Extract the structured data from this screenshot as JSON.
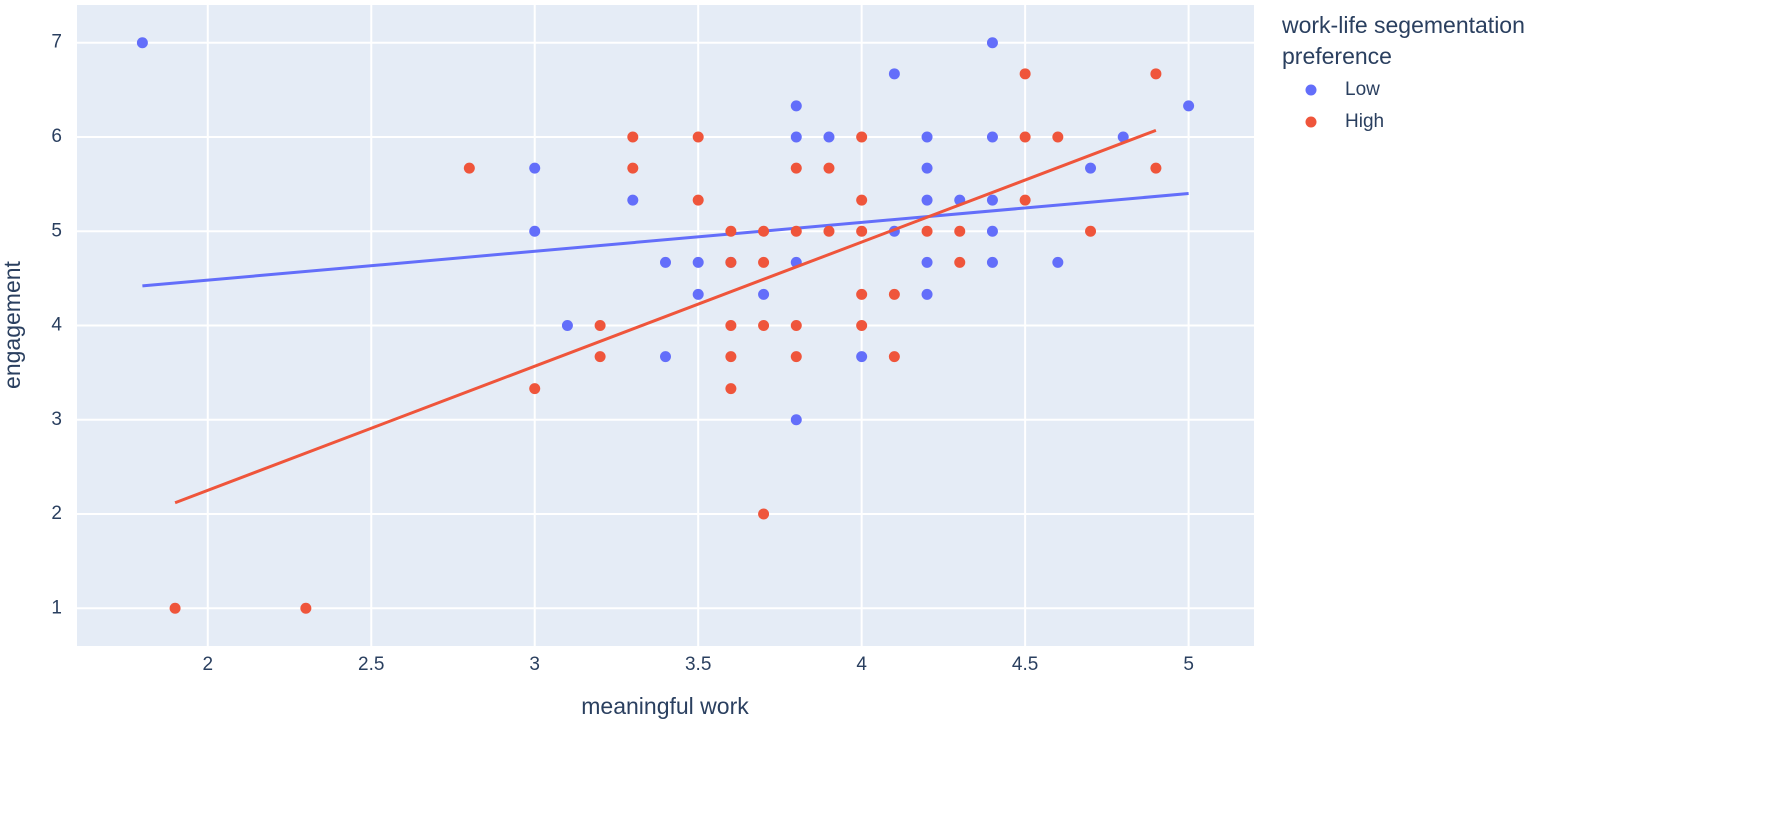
{
  "chart_data": {
    "type": "scatter",
    "xlabel": "meaningful work",
    "ylabel": "engagement",
    "legend_title": "work-life segementation preference",
    "xlim": [
      1.6,
      5.2
    ],
    "ylim": [
      0.6,
      7.4
    ],
    "xticks": [
      2,
      2.5,
      3,
      3.5,
      4,
      4.5,
      5
    ],
    "yticks": [
      1,
      2,
      3,
      4,
      5,
      6,
      7
    ],
    "grid": true,
    "legend": "right",
    "series": [
      {
        "name": "Low",
        "color": "#636efa",
        "x": [
          1.8,
          3.0,
          3.0,
          3.1,
          3.3,
          3.4,
          3.4,
          3.5,
          3.5,
          3.6,
          3.7,
          3.8,
          3.8,
          3.8,
          3.8,
          3.9,
          4.0,
          4.1,
          4.1,
          4.2,
          4.2,
          4.2,
          4.2,
          4.2,
          4.3,
          4.4,
          4.4,
          4.4,
          4.4,
          4.4,
          4.6,
          4.7,
          4.8,
          5.0
        ],
        "y": [
          7,
          5.67,
          5,
          4,
          5.33,
          4.67,
          3.67,
          4.67,
          4.33,
          4.67,
          4.33,
          6.33,
          6,
          4.67,
          3,
          6,
          3.67,
          6.67,
          5,
          6,
          5.67,
          5.33,
          4.67,
          4.33,
          5.33,
          7,
          6,
          5.33,
          5,
          4.67,
          4.67,
          5.67,
          6,
          6.33
        ],
        "trend": {
          "x": [
            1.8,
            5.0
          ],
          "y": [
            4.42,
            5.4
          ]
        }
      },
      {
        "name": "High",
        "color": "#ef553b",
        "x": [
          1.9,
          2.3,
          2.8,
          3.0,
          3.2,
          3.2,
          3.3,
          3.3,
          3.5,
          3.5,
          3.6,
          3.6,
          3.6,
          3.6,
          3.6,
          3.7,
          3.7,
          3.7,
          3.7,
          3.8,
          3.8,
          3.8,
          3.8,
          3.9,
          3.9,
          4.0,
          4.0,
          4.0,
          4.0,
          4.0,
          4.1,
          4.1,
          4.2,
          4.3,
          4.3,
          4.5,
          4.5,
          4.5,
          4.6,
          4.7,
          4.9,
          4.9
        ],
        "y": [
          1,
          1,
          5.67,
          3.33,
          4,
          3.67,
          6,
          5.67,
          6,
          5.33,
          5,
          4.67,
          4,
          3.67,
          3.33,
          5,
          4.67,
          4,
          2,
          5.67,
          5,
          4,
          3.67,
          5.67,
          5,
          6,
          5.33,
          5,
          4.33,
          4,
          4.33,
          3.67,
          5,
          5,
          4.67,
          6.67,
          6,
          5.33,
          6,
          5,
          6.67,
          5.67
        ],
        "trend": {
          "x": [
            1.9,
            4.9
          ],
          "y": [
            2.12,
            6.07
          ]
        }
      }
    ]
  }
}
